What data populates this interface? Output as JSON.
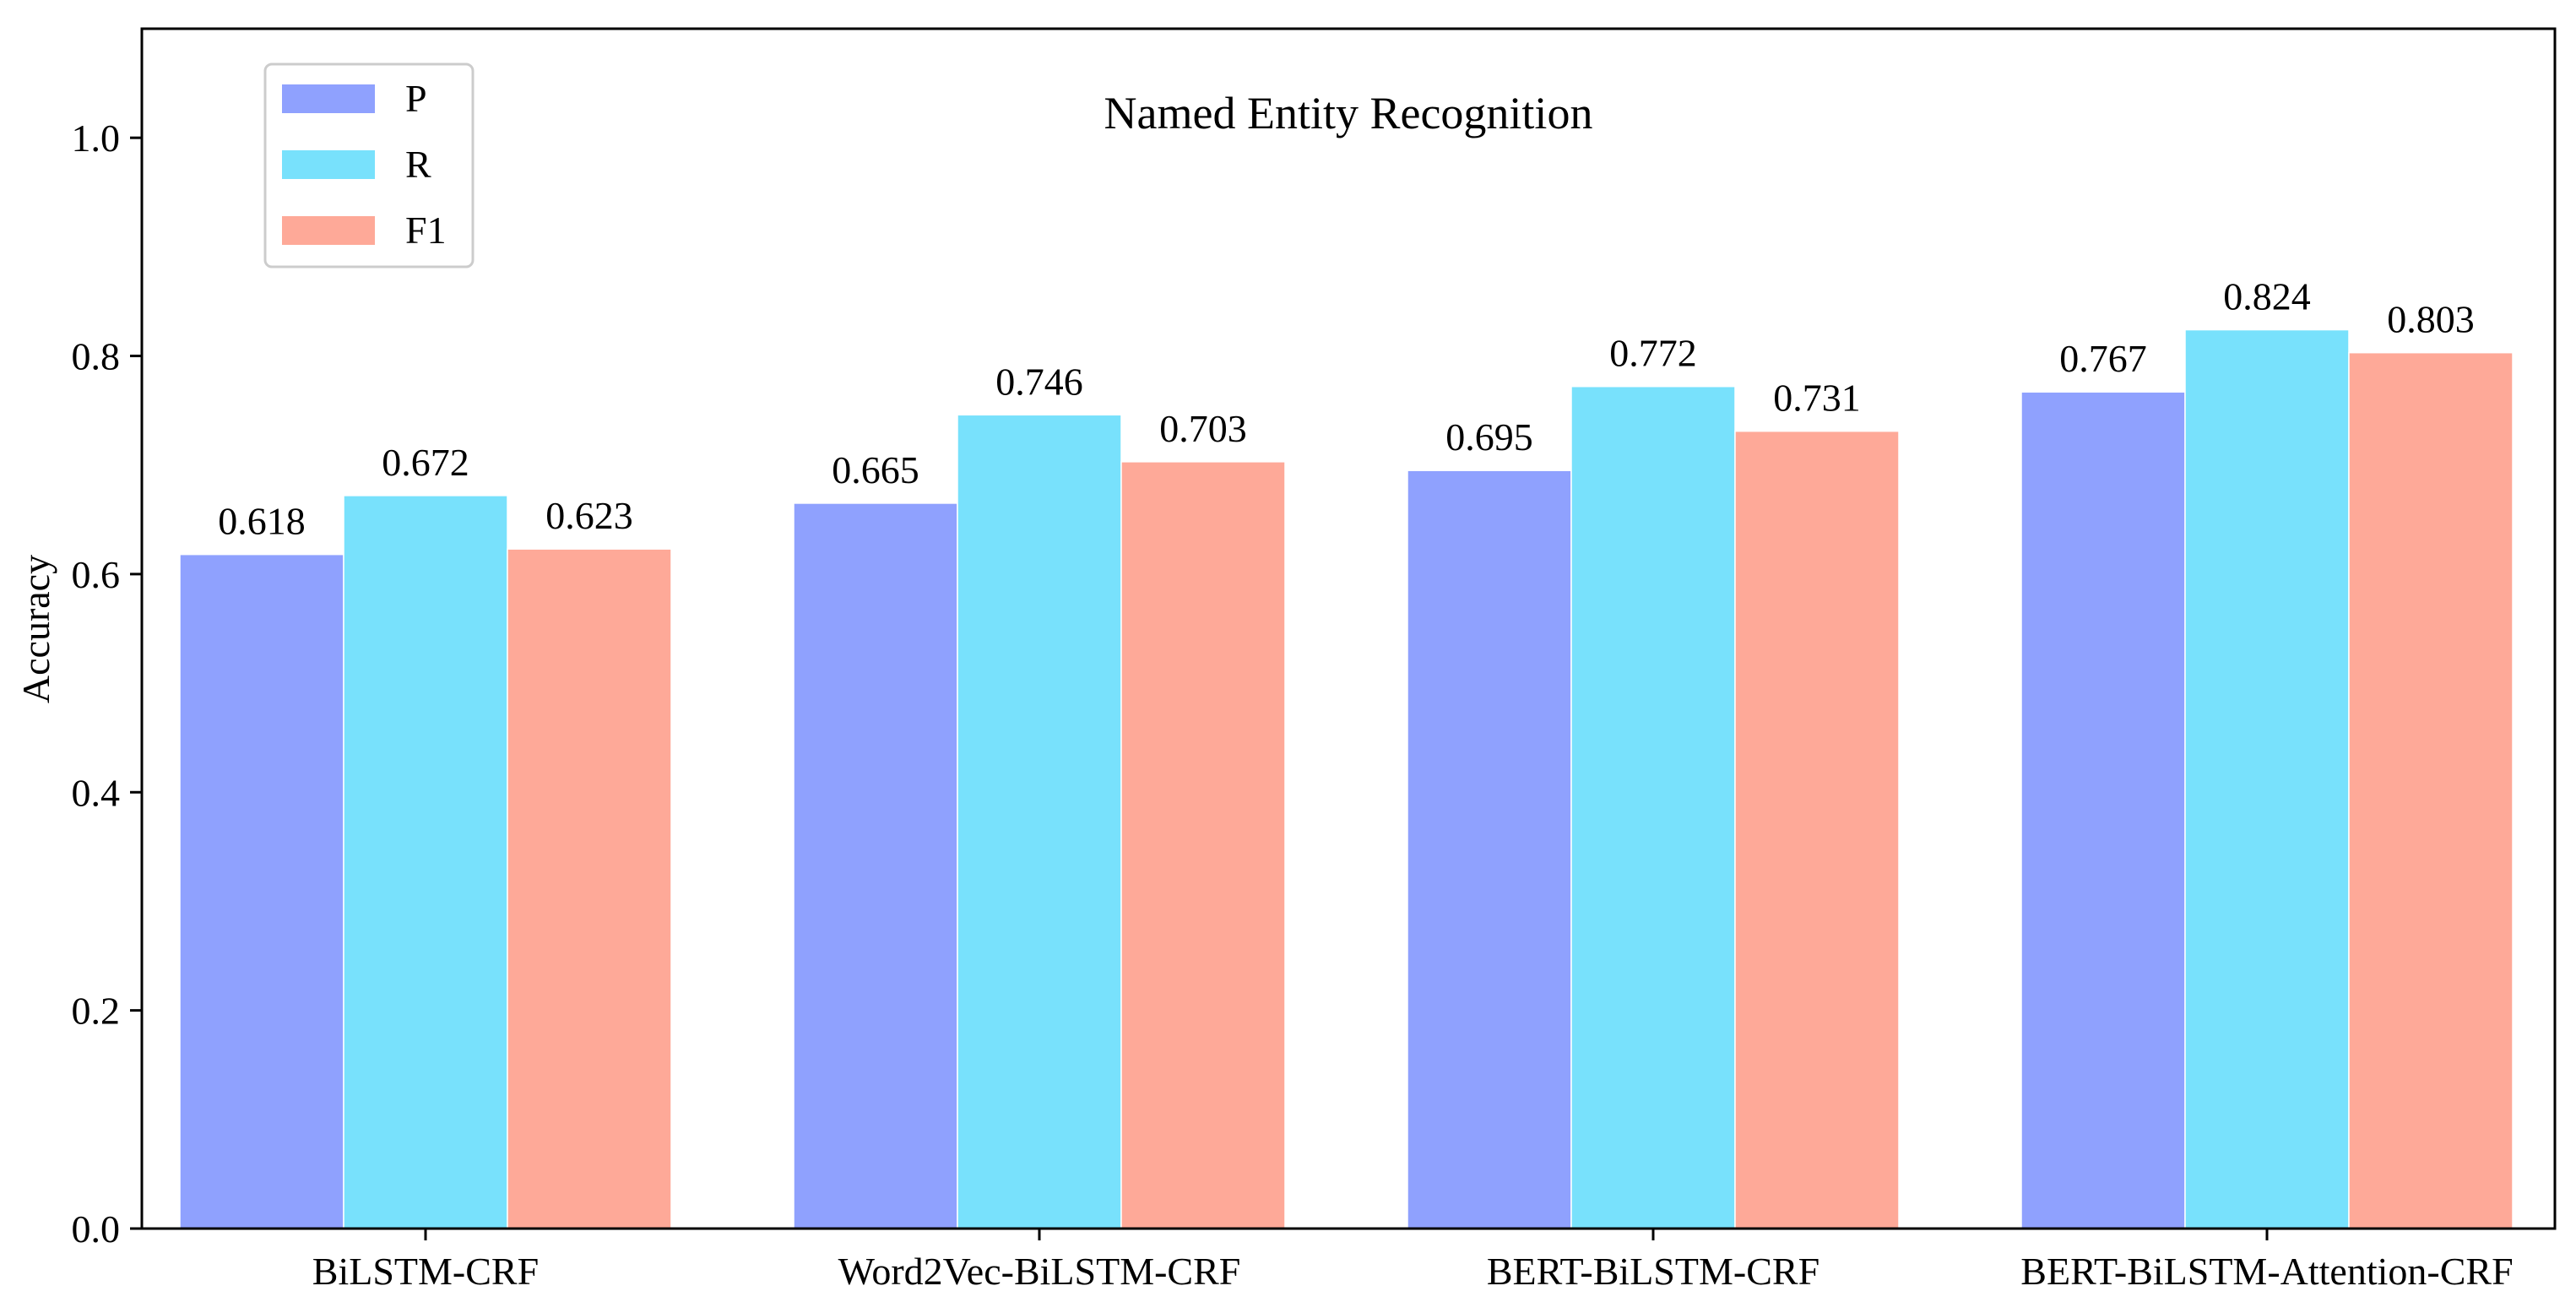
{
  "chart_data": {
    "type": "bar",
    "title": "Named Entity Recognition",
    "xlabel": "",
    "ylabel": "Accuracy",
    "ylim": [
      0,
      1.1
    ],
    "yticks": [
      0.0,
      0.2,
      0.4,
      0.6,
      0.8,
      1.0
    ],
    "ytick_labels": [
      "0.0",
      "0.2",
      "0.4",
      "0.6",
      "0.8",
      "1.0"
    ],
    "categories": [
      "BiLSTM-CRF",
      "Word2Vec-BiLSTM-CRF",
      "BERT-BiLSTM-CRF",
      "BERT-BiLSTM-Attention-CRF"
    ],
    "series": [
      {
        "name": "P",
        "color": "#8fa1fe",
        "values": [
          0.618,
          0.665,
          0.695,
          0.767
        ],
        "labels": [
          "0.618",
          "0.665",
          "0.695",
          "0.767"
        ]
      },
      {
        "name": "R",
        "color": "#78e1fc",
        "values": [
          0.672,
          0.746,
          0.772,
          0.824
        ],
        "labels": [
          "0.672",
          "0.746",
          "0.772",
          "0.824"
        ]
      },
      {
        "name": "F1",
        "color": "#fea998",
        "values": [
          0.623,
          0.703,
          0.731,
          0.803
        ],
        "labels": [
          "0.623",
          "0.703",
          "0.731",
          "0.803"
        ]
      }
    ],
    "legend_position": "top-left",
    "grid": false
  }
}
